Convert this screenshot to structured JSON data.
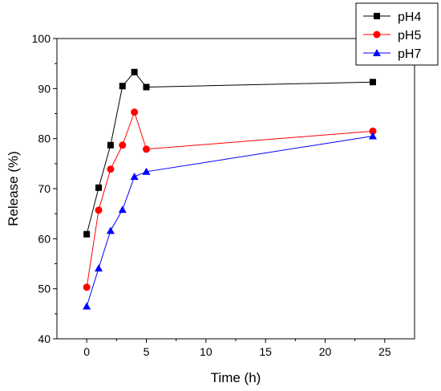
{
  "chart_data": {
    "type": "line",
    "xlabel": "Time (h)",
    "ylabel": "Release (%)",
    "xlim": [
      -2.5,
      27.5
    ],
    "ylim": [
      40,
      100
    ],
    "xticks": [
      0,
      5,
      10,
      15,
      20,
      25
    ],
    "yticks": [
      40,
      50,
      60,
      70,
      80,
      90,
      100
    ],
    "legend_position": "top-right",
    "grid": false,
    "series": [
      {
        "name": "pH4",
        "color": "#000000",
        "marker": "square",
        "x": [
          0,
          1,
          2,
          3,
          4,
          5,
          24
        ],
        "y": [
          60.9,
          70.2,
          78.7,
          90.5,
          93.3,
          90.3,
          91.3
        ]
      },
      {
        "name": "pH5",
        "color": "#ff0000",
        "marker": "circle",
        "x": [
          0,
          1,
          2,
          3,
          4,
          5,
          24
        ],
        "y": [
          50.3,
          65.7,
          73.9,
          78.7,
          85.3,
          77.9,
          81.5
        ]
      },
      {
        "name": "pH7",
        "color": "#0000ff",
        "marker": "triangle",
        "x": [
          0,
          1,
          2,
          3,
          4,
          5,
          24
        ],
        "y": [
          46.5,
          54.1,
          61.6,
          65.8,
          72.4,
          73.4,
          80.5
        ]
      }
    ]
  }
}
